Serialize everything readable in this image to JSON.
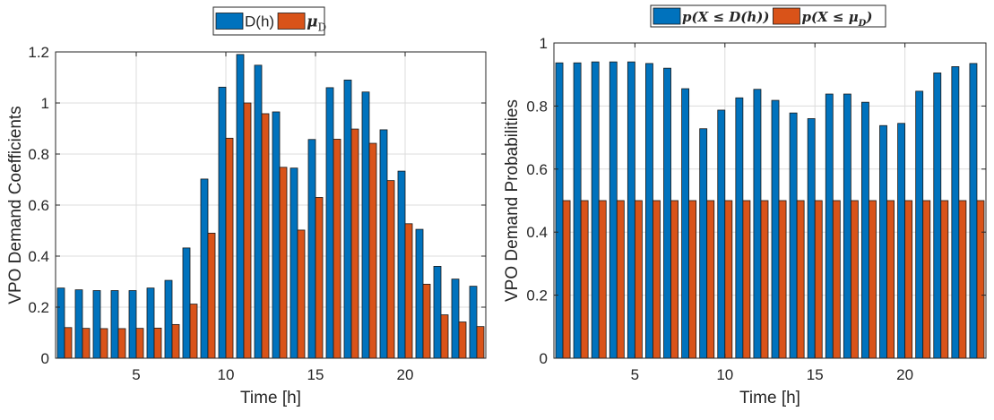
{
  "chart_data": [
    {
      "type": "bar",
      "title": "",
      "xlabel": "Time [h]",
      "ylabel": "VPO Demand Coefficients",
      "xlim": [
        0.5,
        24.5
      ],
      "ylim": [
        0,
        1.2
      ],
      "xticks": [
        5,
        10,
        15,
        20
      ],
      "yticks": [
        0,
        0.2,
        0.4,
        0.6,
        0.8,
        1,
        1.2
      ],
      "ytick_labels": [
        "0",
        "0.2",
        "0.4",
        "0.6",
        "0.8",
        "1",
        "1.2"
      ],
      "grid": true,
      "legend_position": "top-center-outside",
      "categories": [
        1,
        2,
        3,
        4,
        5,
        6,
        7,
        8,
        9,
        10,
        11,
        12,
        13,
        14,
        15,
        16,
        17,
        18,
        19,
        20,
        21,
        22,
        23,
        24
      ],
      "series": [
        {
          "name": "D(h)",
          "legend_main": "D(h)",
          "legend_sub": "",
          "color": "#0072BD",
          "values": [
            0.275,
            0.268,
            0.265,
            0.265,
            0.265,
            0.275,
            0.305,
            0.432,
            0.702,
            1.062,
            1.19,
            1.148,
            0.965,
            0.745,
            0.857,
            1.06,
            1.09,
            1.043,
            0.895,
            0.733,
            0.505,
            0.36,
            0.31,
            0.282
          ]
        },
        {
          "name": "μD",
          "legend_main": "μ",
          "legend_sub": "D",
          "color": "#D95319",
          "values": [
            0.12,
            0.117,
            0.116,
            0.116,
            0.117,
            0.118,
            0.132,
            0.212,
            0.49,
            0.862,
            1.0,
            0.958,
            0.748,
            0.502,
            0.63,
            0.858,
            0.898,
            0.842,
            0.696,
            0.527,
            0.29,
            0.17,
            0.142,
            0.124
          ]
        }
      ]
    },
    {
      "type": "bar",
      "title": "",
      "xlabel": "Time [h]",
      "ylabel": "VPO Demand Probabilities",
      "xlim": [
        0.5,
        24.5
      ],
      "ylim": [
        0,
        1
      ],
      "xticks": [
        5,
        10,
        15,
        20
      ],
      "yticks": [
        0,
        0.2,
        0.4,
        0.6,
        0.8,
        1
      ],
      "ytick_labels": [
        "0",
        "0.2",
        "0.4",
        "0.6",
        "0.8",
        "1"
      ],
      "grid": true,
      "legend_position": "top-center-outside",
      "categories": [
        1,
        2,
        3,
        4,
        5,
        6,
        7,
        8,
        9,
        10,
        11,
        12,
        13,
        14,
        15,
        16,
        17,
        18,
        19,
        20,
        21,
        22,
        23,
        24
      ],
      "series": [
        {
          "name": "p(X ≤ D(h))",
          "legend_main": "p(X ≤ D(h))",
          "legend_sub": "",
          "color": "#0072BD",
          "values": [
            0.937,
            0.937,
            0.94,
            0.94,
            0.94,
            0.935,
            0.92,
            0.855,
            0.728,
            0.787,
            0.826,
            0.853,
            0.818,
            0.778,
            0.76,
            0.838,
            0.838,
            0.812,
            0.738,
            0.745,
            0.847,
            0.905,
            0.925,
            0.935
          ]
        },
        {
          "name": "p(X ≤ μD)",
          "legend_main": "p(X ≤ μ",
          "legend_sub": "D",
          "legend_tail": ")",
          "color": "#D95319",
          "values": [
            0.5,
            0.5,
            0.5,
            0.5,
            0.5,
            0.5,
            0.5,
            0.5,
            0.5,
            0.5,
            0.5,
            0.5,
            0.5,
            0.5,
            0.5,
            0.5,
            0.5,
            0.5,
            0.5,
            0.5,
            0.5,
            0.5,
            0.5,
            0.5
          ]
        }
      ]
    }
  ]
}
